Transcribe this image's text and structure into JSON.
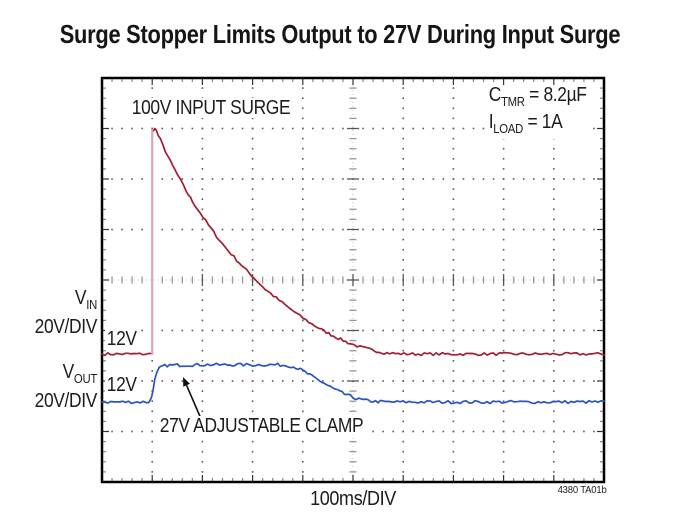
{
  "title": "Surge Stopper Limits Output to 27V During Input Surge",
  "footer_code": "4380 TA01b",
  "chart_data": {
    "type": "line",
    "title": "Surge Stopper Limits Output to 27V During Input Surge",
    "xlabel": "100ms/DIV",
    "x_units_per_div": "100ms",
    "divisions": {
      "x": 10,
      "y": 8,
      "minor_per_div": 5
    },
    "grid": "oscilloscope graticule, dotted major lines, center cross ticks",
    "annotations": {
      "surge": "100V INPUT SURGE",
      "clamp": "27V ADJUSTABLE CLAMP",
      "cond1": {
        "sym": "C",
        "sub": "TMR",
        "rest": " = 8.2µF"
      },
      "cond2": {
        "sym": "I",
        "sub": "LOAD",
        "rest": " = 1A"
      }
    },
    "channels": [
      {
        "label": "V",
        "label_sub": "IN",
        "scale_label": "20V/DIV",
        "level_label": "12V",
        "baseline_v": 12,
        "peak_v": 100
      },
      {
        "label": "V",
        "label_sub": "OUT",
        "scale_label": "20V/DIV",
        "level_label": "12V",
        "baseline_v": 12,
        "clamp_v": 27
      }
    ],
    "series": [
      {
        "name": "VIN",
        "color": "#a51c33",
        "edge_color": "#e2a2b5",
        "volts_per_div": 20,
        "zero_div_from_bottom": 1.934,
        "noise_pp": 1.1,
        "paths": [
          {
            "noise": true,
            "points": [
              [
                0,
                12
              ],
              [
                0.985,
                12
              ]
            ]
          },
          {
            "noise": false,
            "edge": true,
            "points": [
              [
                1.0,
                12
              ],
              [
                1.0,
                100.8
              ]
            ]
          },
          {
            "noise": true,
            "points": [
              [
                1.03,
                100.5
              ],
              [
                1.05,
                101.8
              ],
              [
                1.08,
                100.6
              ],
              [
                1.12,
                98.6
              ],
              [
                1.16,
                97
              ],
              [
                1.26,
                92.5
              ],
              [
                1.36,
                88.3
              ],
              [
                1.46,
                84.6
              ],
              [
                1.56,
                80.9
              ],
              [
                1.68,
                76.5
              ],
              [
                1.8,
                72.5
              ],
              [
                1.96,
                67.8
              ],
              [
                2.12,
                63.1
              ],
              [
                2.28,
                58.7
              ],
              [
                2.45,
                54.4
              ],
              [
                2.63,
                50.4
              ],
              [
                2.83,
                46.1
              ],
              [
                3.03,
                42.1
              ],
              [
                3.25,
                37.7
              ],
              [
                3.47,
                34.2
              ],
              [
                3.7,
                30.6
              ],
              [
                3.94,
                27.1
              ],
              [
                4.18,
                23.9
              ],
              [
                4.42,
                21.1
              ],
              [
                4.66,
                18.7
              ],
              [
                4.9,
                16.5
              ],
              [
                5.14,
                14.8
              ],
              [
                5.38,
                13.6
              ],
              [
                5.62,
                12.5
              ],
              [
                5.9,
                12.1
              ],
              [
                6.3,
                12
              ],
              [
                10,
                12
              ]
            ]
          }
        ]
      },
      {
        "name": "VOUT",
        "color": "#2a52c2",
        "volts_per_div": 20,
        "zero_div_from_bottom": 0.984,
        "noise_pp": 1.2,
        "paths": [
          {
            "noise": true,
            "points": [
              [
                0,
                12
              ],
              [
                0.88,
                12
              ],
              [
                0.93,
                12.1
              ],
              [
                0.96,
                12.6
              ],
              [
                0.99,
                14.2
              ],
              [
                1.02,
                17.5
              ],
              [
                1.05,
                20.5
              ],
              [
                1.09,
                23.2
              ],
              [
                1.14,
                25.2
              ],
              [
                1.2,
                26.1
              ],
              [
                1.3,
                26.5
              ],
              [
                1.5,
                26.6
              ],
              [
                1.8,
                26.7
              ],
              [
                2.1,
                26.8
              ],
              [
                2.4,
                26.7
              ],
              [
                2.7,
                26.8
              ],
              [
                3.0,
                26.7
              ],
              [
                3.3,
                26.8
              ],
              [
                3.55,
                26.7
              ],
              [
                3.72,
                26.4
              ],
              [
                3.86,
                25.7
              ],
              [
                4.0,
                24.4
              ],
              [
                4.14,
                22.7
              ],
              [
                4.26,
                21.3
              ],
              [
                4.38,
                19.9
              ],
              [
                4.5,
                18.5
              ],
              [
                4.62,
                17.2
              ],
              [
                4.74,
                16.0
              ],
              [
                4.86,
                14.9
              ],
              [
                5.0,
                13.8
              ],
              [
                5.12,
                13.1
              ],
              [
                5.26,
                12.6
              ],
              [
                5.45,
                12.2
              ],
              [
                5.7,
                12
              ],
              [
                10,
                12
              ]
            ]
          }
        ]
      }
    ]
  }
}
